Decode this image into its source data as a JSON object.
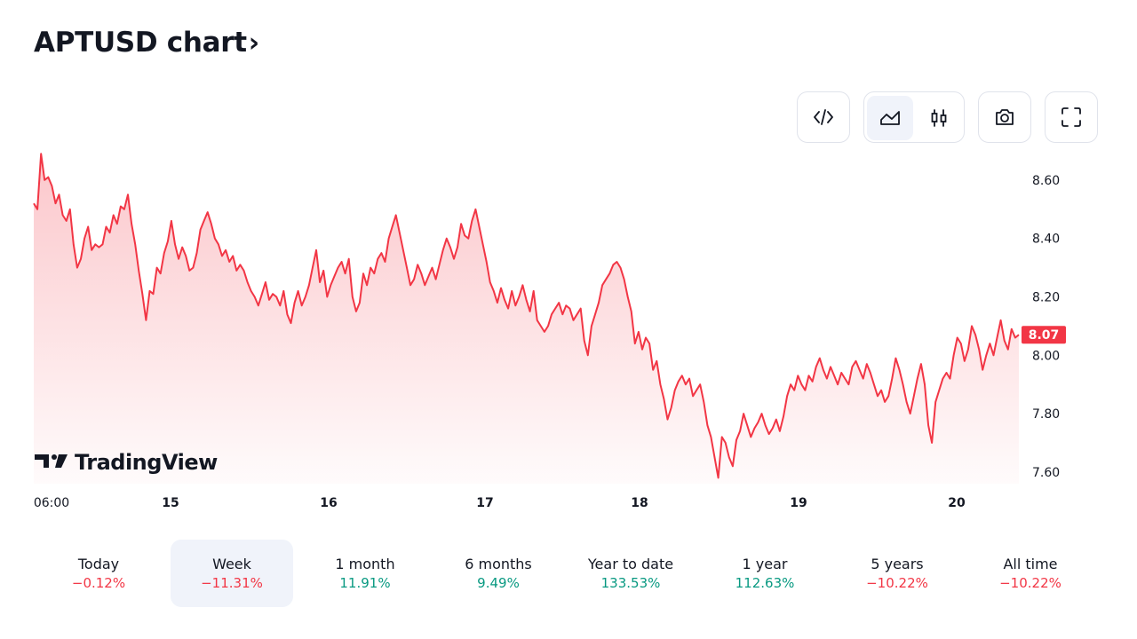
{
  "header": {
    "title": "APTUSD chart",
    "chevron": "›"
  },
  "toolbar": {
    "buttons": [
      {
        "name": "embed-code-button",
        "icon": "code-icon"
      },
      {
        "name": "area-chart-button",
        "icon": "area-chart-icon",
        "active": true
      },
      {
        "name": "candles-chart-button",
        "icon": "candles-icon"
      },
      {
        "name": "snapshot-button",
        "icon": "camera-icon"
      },
      {
        "name": "fullscreen-button",
        "icon": "fullscreen-icon"
      }
    ]
  },
  "chart_data": {
    "type": "area",
    "x_ticks": [
      "06:00",
      "15",
      "16",
      "17",
      "18",
      "19",
      "20"
    ],
    "y_ticks": [
      "8.60",
      "8.40",
      "8.20",
      "8.00",
      "7.80",
      "7.60"
    ],
    "ylim": [
      7.56,
      8.7
    ],
    "last_price": "8.07",
    "line_color": "#f23645",
    "fill_color": "#f23645",
    "watermark": "TradingView",
    "values": [
      8.52,
      8.5,
      8.69,
      8.6,
      8.61,
      8.58,
      8.52,
      8.55,
      8.48,
      8.46,
      8.5,
      8.38,
      8.3,
      8.33,
      8.4,
      8.44,
      8.36,
      8.38,
      8.37,
      8.38,
      8.44,
      8.42,
      8.48,
      8.45,
      8.51,
      8.5,
      8.55,
      8.45,
      8.38,
      8.29,
      8.21,
      8.12,
      8.22,
      8.21,
      8.3,
      8.28,
      8.35,
      8.39,
      8.46,
      8.38,
      8.33,
      8.37,
      8.34,
      8.29,
      8.3,
      8.35,
      8.43,
      8.46,
      8.49,
      8.45,
      8.4,
      8.38,
      8.34,
      8.36,
      8.32,
      8.34,
      8.29,
      8.31,
      8.29,
      8.25,
      8.22,
      8.2,
      8.17,
      8.21,
      8.25,
      8.19,
      8.21,
      8.2,
      8.17,
      8.22,
      8.14,
      8.11,
      8.18,
      8.22,
      8.17,
      8.2,
      8.24,
      8.3,
      8.36,
      8.25,
      8.29,
      8.2,
      8.24,
      8.27,
      8.3,
      8.32,
      8.28,
      8.33,
      8.2,
      8.15,
      8.18,
      8.28,
      8.24,
      8.3,
      8.28,
      8.33,
      8.35,
      8.32,
      8.4,
      8.44,
      8.48,
      8.42,
      8.36,
      8.3,
      8.24,
      8.26,
      8.31,
      8.28,
      8.24,
      8.27,
      8.3,
      8.26,
      8.31,
      8.36,
      8.4,
      8.37,
      8.33,
      8.37,
      8.45,
      8.41,
      8.4,
      8.46,
      8.5,
      8.44,
      8.38,
      8.32,
      8.25,
      8.22,
      8.18,
      8.23,
      8.19,
      8.16,
      8.22,
      8.17,
      8.2,
      8.24,
      8.19,
      8.15,
      8.22,
      8.12,
      8.1,
      8.08,
      8.1,
      8.14,
      8.16,
      8.18,
      8.14,
      8.17,
      8.16,
      8.12,
      8.14,
      8.16,
      8.05,
      8.0,
      8.1,
      8.14,
      8.18,
      8.24,
      8.26,
      8.28,
      8.31,
      8.32,
      8.3,
      8.26,
      8.2,
      8.15,
      8.04,
      8.08,
      8.02,
      8.06,
      8.04,
      7.95,
      7.98,
      7.9,
      7.85,
      7.78,
      7.82,
      7.88,
      7.91,
      7.93,
      7.9,
      7.92,
      7.86,
      7.88,
      7.9,
      7.84,
      7.76,
      7.72,
      7.65,
      7.58,
      7.72,
      7.7,
      7.65,
      7.62,
      7.71,
      7.74,
      7.8,
      7.76,
      7.72,
      7.75,
      7.77,
      7.8,
      7.76,
      7.73,
      7.75,
      7.78,
      7.74,
      7.79,
      7.86,
      7.9,
      7.88,
      7.93,
      7.9,
      7.88,
      7.93,
      7.91,
      7.96,
      7.99,
      7.95,
      7.92,
      7.96,
      7.93,
      7.9,
      7.94,
      7.92,
      7.9,
      7.96,
      7.98,
      7.95,
      7.92,
      7.97,
      7.94,
      7.9,
      7.86,
      7.88,
      7.84,
      7.86,
      7.92,
      7.99,
      7.95,
      7.9,
      7.84,
      7.8,
      7.86,
      7.92,
      7.97,
      7.9,
      7.76,
      7.7,
      7.84,
      7.88,
      7.92,
      7.94,
      7.92,
      8.0,
      8.06,
      8.04,
      7.98,
      8.02,
      8.1,
      8.07,
      8.02,
      7.95,
      8.0,
      8.04,
      8.0,
      8.06,
      8.12,
      8.05,
      8.02,
      8.09,
      8.06,
      8.07
    ]
  },
  "periods": [
    {
      "label": "Today",
      "value": "−0.12%",
      "trend": "neg"
    },
    {
      "label": "Week",
      "value": "−11.31%",
      "trend": "neg",
      "active": true
    },
    {
      "label": "1 month",
      "value": "11.91%",
      "trend": "pos"
    },
    {
      "label": "6 months",
      "value": "9.49%",
      "trend": "pos"
    },
    {
      "label": "Year to date",
      "value": "133.53%",
      "trend": "pos"
    },
    {
      "label": "1 year",
      "value": "112.63%",
      "trend": "pos"
    },
    {
      "label": "5 years",
      "value": "−10.22%",
      "trend": "neg"
    },
    {
      "label": "All time",
      "value": "−10.22%",
      "trend": "neg"
    }
  ]
}
